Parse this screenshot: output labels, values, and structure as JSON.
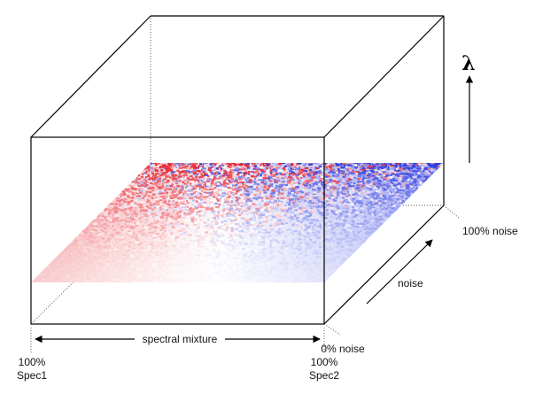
{
  "diagram": {
    "axis_symbol": "λ",
    "x_axis": {
      "label": "spectral mixture",
      "left_percent": "100%",
      "left_name": "Spec1",
      "right_percent": "100%",
      "right_name": "Spec2"
    },
    "noise_axis": {
      "label": "noise",
      "low": "0% noise",
      "high": "100% noise"
    },
    "colors": {
      "spec1": "#e8202a",
      "spec2": "#2a3ae0",
      "mixture_mid": "#ffffff",
      "lines": "#000000",
      "hidden_edges": "#555555"
    }
  }
}
